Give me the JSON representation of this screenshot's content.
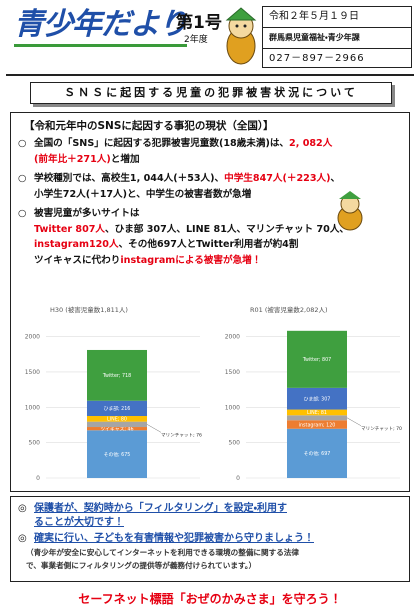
{
  "header": {
    "title": "青少年だより",
    "issue": "第1号",
    "year": "2年度",
    "date": "令和２年５月１９日",
    "office": "群馬県児童福祉・青少年課",
    "phone": "027－897－2966"
  },
  "banner": "ＳＮＳに起因する児童の犯罪被害状況について",
  "section": {
    "heading": "【令和元年中のSNSに起因する事犯の現状（全国）】",
    "items": [
      {
        "mark": "○",
        "lines": [
          [
            {
              "text": "全国の「SNS」に起因する犯罪被害児童数(18歳未満)は、"
            },
            {
              "text": "2, 082人",
              "color": "#e60012"
            }
          ],
          [
            {
              "text": "(前年比＋271人)",
              "color": "#e60012"
            },
            {
              "text": "と増加"
            }
          ]
        ]
      },
      {
        "mark": "○",
        "lines": [
          [
            {
              "text": "学校種別では、高校生1, 044人(＋53人)、"
            },
            {
              "text": "中学生847人(＋223人)",
              "color": "#e60012"
            },
            {
              "text": "、"
            }
          ],
          [
            {
              "text": "小学生72人(＋17人)と、中学生の被害者数が急増"
            }
          ]
        ]
      },
      {
        "mark": "○",
        "lines": [
          [
            {
              "text": "被害児童が多いサイトは"
            }
          ],
          [
            {
              "text": "Twitter 807人",
              "color": "#e60012"
            },
            {
              "text": "、ひま部 307人、LINE 81人、マリンチャット 70人、"
            }
          ],
          [
            {
              "text": "instagram120人",
              "color": "#e60012"
            },
            {
              "text": "、その他697人とTwitter利用者が約4割"
            }
          ],
          [
            {
              "text": "ツイキャスに代わり"
            },
            {
              "text": "instagramによる被害が急増！",
              "color": "#e60012"
            }
          ]
        ]
      }
    ]
  },
  "chart_data": [
    {
      "type": "bar",
      "stacked": true,
      "title": "H30 (被害児童数1,811人)",
      "ylim": [
        0,
        2150
      ],
      "yticks": [
        0,
        500,
        1000,
        1500,
        2000
      ],
      "grid": true,
      "series": [
        {
          "values": [
            675
          ],
          "value_labels": [
            "その他; 675"
          ],
          "color": "#5b9bd5"
        },
        {
          "values": [
            46
          ],
          "value_labels": [
            "ツイキャス; 46"
          ],
          "color": "#ed7d31"
        },
        {
          "values": [
            76
          ],
          "value_labels": [
            "マリンチャット; 76"
          ],
          "color": "#a5a5a5",
          "label_outside": true
        },
        {
          "values": [
            80
          ],
          "value_labels": [
            "LINE; 80"
          ],
          "color": "#ffc000"
        },
        {
          "values": [
            216
          ],
          "value_labels": [
            "ひま部; 216"
          ],
          "color": "#4472c4"
        },
        {
          "values": [
            718
          ],
          "value_labels": [
            "Twitter; 718"
          ],
          "color": "#3f9f3f"
        }
      ]
    },
    {
      "type": "bar",
      "stacked": true,
      "title": "R01 (被害児童数2,082人)",
      "ylim": [
        0,
        2150
      ],
      "yticks": [
        0,
        500,
        1000,
        1500,
        2000
      ],
      "grid": true,
      "series": [
        {
          "values": [
            697
          ],
          "value_labels": [
            "その他; 697"
          ],
          "color": "#5b9bd5"
        },
        {
          "values": [
            120
          ],
          "value_labels": [
            "instagram; 120"
          ],
          "color": "#ed7d31"
        },
        {
          "values": [
            70
          ],
          "value_labels": [
            "マリンチャット; 70"
          ],
          "color": "#a5a5a5",
          "label_outside": true
        },
        {
          "values": [
            81
          ],
          "value_labels": [
            "LINE; 81"
          ],
          "color": "#ffc000"
        },
        {
          "values": [
            307
          ],
          "value_labels": [
            "ひま部; 307"
          ],
          "color": "#4472c4"
        },
        {
          "values": [
            807
          ],
          "value_labels": [
            "Twitter; 807"
          ],
          "color": "#3f9f3f"
        }
      ]
    }
  ],
  "notice": {
    "items": [
      {
        "mark": "◎",
        "lines": [
          "保護者が、契約時から「フィルタリング」を設定・利用す",
          "ることが大切です！"
        ]
      },
      {
        "mark": "◎",
        "lines": [
          "確実に行い、子どもを有害情報や犯罪被害から守りましょう！"
        ]
      }
    ],
    "note": [
      "（青少年が安全に安心してインターネットを利用できる環境の整備に関する法律",
      "で、事業者側にフィルタリングの提供等が義務付けられています。）"
    ]
  },
  "footer": "セーフネット標語「おぜのかみさま」を守ろう！"
}
